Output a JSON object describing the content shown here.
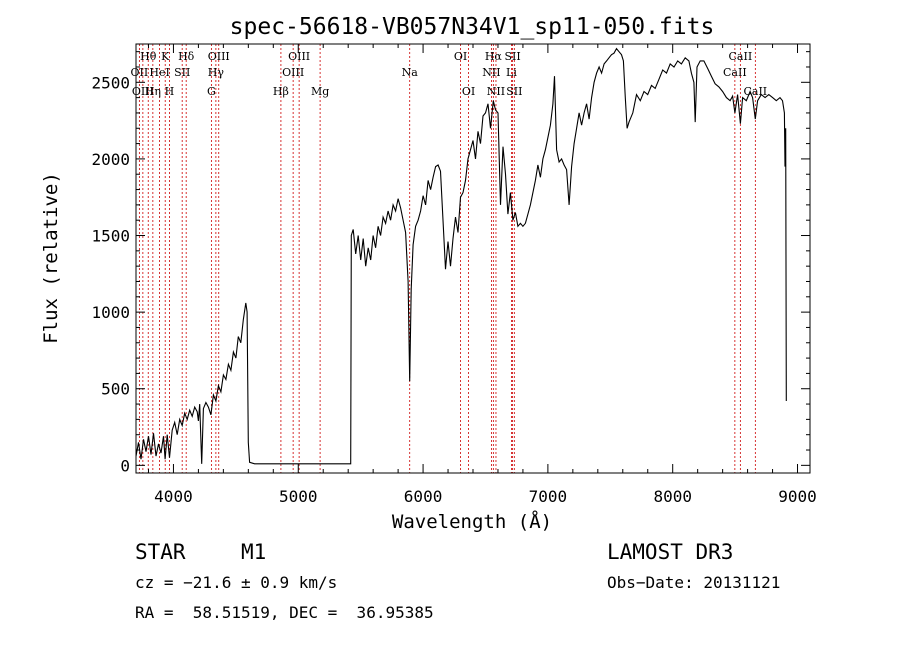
{
  "chart_data": {
    "type": "line",
    "title": "spec-56618-VB057N34V1_sp11-050.fits",
    "xlabel": "Wavelength (Å)",
    "ylabel": "Flux (relative)",
    "xlim": [
      3700,
      9100
    ],
    "ylim": [
      -50,
      2750
    ],
    "x_ticks": [
      4000,
      5000,
      6000,
      7000,
      8000,
      9000
    ],
    "y_ticks": [
      0,
      500,
      1000,
      1500,
      2000,
      2500
    ],
    "grid": false,
    "line_color": "#000000",
    "marker_color": "#cc0000",
    "series": [
      {
        "points": [
          [
            3700,
            60
          ],
          [
            3720,
            150
          ],
          [
            3740,
            40
          ],
          [
            3760,
            170
          ],
          [
            3780,
            90
          ],
          [
            3800,
            190
          ],
          [
            3820,
            70
          ],
          [
            3840,
            210
          ],
          [
            3860,
            60
          ],
          [
            3880,
            140
          ],
          [
            3900,
            80
          ],
          [
            3920,
            190
          ],
          [
            3933,
            40
          ],
          [
            3950,
            200
          ],
          [
            3968,
            50
          ],
          [
            3990,
            230
          ],
          [
            4010,
            280
          ],
          [
            4030,
            200
          ],
          [
            4050,
            300
          ],
          [
            4070,
            260
          ],
          [
            4090,
            340
          ],
          [
            4110,
            300
          ],
          [
            4130,
            360
          ],
          [
            4150,
            320
          ],
          [
            4170,
            380
          ],
          [
            4190,
            350
          ],
          [
            4200,
            290
          ],
          [
            4210,
            400
          ],
          [
            4226,
            10
          ],
          [
            4240,
            370
          ],
          [
            4260,
            410
          ],
          [
            4280,
            380
          ],
          [
            4300,
            330
          ],
          [
            4320,
            460
          ],
          [
            4340,
            420
          ],
          [
            4360,
            520
          ],
          [
            4380,
            480
          ],
          [
            4400,
            590
          ],
          [
            4420,
            560
          ],
          [
            4440,
            660
          ],
          [
            4460,
            620
          ],
          [
            4480,
            740
          ],
          [
            4500,
            700
          ],
          [
            4520,
            840
          ],
          [
            4540,
            800
          ],
          [
            4560,
            950
          ],
          [
            4580,
            1060
          ],
          [
            4590,
            1000
          ],
          [
            4600,
            150
          ],
          [
            4610,
            20
          ],
          [
            4650,
            10
          ],
          [
            5000,
            10
          ],
          [
            5420,
            10
          ],
          [
            5425,
            1500
          ],
          [
            5440,
            1540
          ],
          [
            5460,
            1380
          ],
          [
            5480,
            1500
          ],
          [
            5500,
            1340
          ],
          [
            5520,
            1480
          ],
          [
            5540,
            1300
          ],
          [
            5560,
            1420
          ],
          [
            5580,
            1340
          ],
          [
            5600,
            1500
          ],
          [
            5620,
            1420
          ],
          [
            5640,
            1560
          ],
          [
            5660,
            1500
          ],
          [
            5680,
            1620
          ],
          [
            5700,
            1580
          ],
          [
            5720,
            1660
          ],
          [
            5740,
            1600
          ],
          [
            5760,
            1700
          ],
          [
            5780,
            1660
          ],
          [
            5800,
            1740
          ],
          [
            5820,
            1680
          ],
          [
            5840,
            1600
          ],
          [
            5860,
            1520
          ],
          [
            5880,
            1200
          ],
          [
            5893,
            550
          ],
          [
            5905,
            1150
          ],
          [
            5920,
            1440
          ],
          [
            5940,
            1560
          ],
          [
            5960,
            1600
          ],
          [
            5980,
            1660
          ],
          [
            6000,
            1760
          ],
          [
            6020,
            1700
          ],
          [
            6040,
            1860
          ],
          [
            6060,
            1800
          ],
          [
            6080,
            1880
          ],
          [
            6100,
            1950
          ],
          [
            6120,
            1960
          ],
          [
            6140,
            1920
          ],
          [
            6160,
            1600
          ],
          [
            6180,
            1280
          ],
          [
            6200,
            1460
          ],
          [
            6220,
            1300
          ],
          [
            6240,
            1480
          ],
          [
            6260,
            1620
          ],
          [
            6280,
            1520
          ],
          [
            6300,
            1750
          ],
          [
            6320,
            1780
          ],
          [
            6340,
            1860
          ],
          [
            6360,
            2000
          ],
          [
            6380,
            2060
          ],
          [
            6400,
            2120
          ],
          [
            6420,
            2000
          ],
          [
            6440,
            2180
          ],
          [
            6460,
            2100
          ],
          [
            6480,
            2280
          ],
          [
            6500,
            2300
          ],
          [
            6520,
            2360
          ],
          [
            6540,
            2200
          ],
          [
            6563,
            2380
          ],
          [
            6580,
            2320
          ],
          [
            6600,
            2300
          ],
          [
            6620,
            1700
          ],
          [
            6640,
            2080
          ],
          [
            6660,
            1900
          ],
          [
            6680,
            1640
          ],
          [
            6700,
            1780
          ],
          [
            6720,
            1600
          ],
          [
            6740,
            1650
          ],
          [
            6760,
            1560
          ],
          [
            6780,
            1580
          ],
          [
            6800,
            1560
          ],
          [
            6820,
            1580
          ],
          [
            6840,
            1640
          ],
          [
            6860,
            1700
          ],
          [
            6880,
            1780
          ],
          [
            6900,
            1860
          ],
          [
            6920,
            1960
          ],
          [
            6940,
            1880
          ],
          [
            6960,
            2000
          ],
          [
            6980,
            2060
          ],
          [
            7000,
            2140
          ],
          [
            7020,
            2220
          ],
          [
            7040,
            2360
          ],
          [
            7053,
            2540
          ],
          [
            7070,
            2060
          ],
          [
            7090,
            1980
          ],
          [
            7110,
            2000
          ],
          [
            7130,
            1960
          ],
          [
            7150,
            1930
          ],
          [
            7170,
            1700
          ],
          [
            7190,
            1950
          ],
          [
            7210,
            2100
          ],
          [
            7230,
            2200
          ],
          [
            7250,
            2300
          ],
          [
            7270,
            2220
          ],
          [
            7290,
            2300
          ],
          [
            7310,
            2360
          ],
          [
            7330,
            2260
          ],
          [
            7350,
            2400
          ],
          [
            7370,
            2500
          ],
          [
            7390,
            2560
          ],
          [
            7410,
            2600
          ],
          [
            7430,
            2560
          ],
          [
            7450,
            2620
          ],
          [
            7470,
            2640
          ],
          [
            7490,
            2660
          ],
          [
            7510,
            2680
          ],
          [
            7530,
            2690
          ],
          [
            7550,
            2720
          ],
          [
            7570,
            2700
          ],
          [
            7590,
            2680
          ],
          [
            7605,
            2640
          ],
          [
            7620,
            2400
          ],
          [
            7635,
            2200
          ],
          [
            7650,
            2240
          ],
          [
            7680,
            2300
          ],
          [
            7710,
            2420
          ],
          [
            7740,
            2380
          ],
          [
            7770,
            2440
          ],
          [
            7800,
            2420
          ],
          [
            7830,
            2480
          ],
          [
            7860,
            2460
          ],
          [
            7890,
            2520
          ],
          [
            7920,
            2580
          ],
          [
            7950,
            2560
          ],
          [
            7980,
            2620
          ],
          [
            8010,
            2600
          ],
          [
            8040,
            2640
          ],
          [
            8070,
            2620
          ],
          [
            8100,
            2660
          ],
          [
            8130,
            2640
          ],
          [
            8150,
            2560
          ],
          [
            8170,
            2500
          ],
          [
            8180,
            2240
          ],
          [
            8195,
            2600
          ],
          [
            8220,
            2640
          ],
          [
            8250,
            2640
          ],
          [
            8280,
            2590
          ],
          [
            8310,
            2540
          ],
          [
            8340,
            2490
          ],
          [
            8370,
            2470
          ],
          [
            8400,
            2440
          ],
          [
            8430,
            2400
          ],
          [
            8460,
            2380
          ],
          [
            8480,
            2410
          ],
          [
            8498,
            2300
          ],
          [
            8520,
            2420
          ],
          [
            8542,
            2230
          ],
          [
            8560,
            2400
          ],
          [
            8590,
            2380
          ],
          [
            8620,
            2440
          ],
          [
            8640,
            2400
          ],
          [
            8662,
            2260
          ],
          [
            8680,
            2380
          ],
          [
            8710,
            2420
          ],
          [
            8740,
            2400
          ],
          [
            8770,
            2420
          ],
          [
            8800,
            2400
          ],
          [
            8830,
            2380
          ],
          [
            8860,
            2400
          ],
          [
            8880,
            2380
          ],
          [
            8895,
            2300
          ],
          [
            8900,
            1950
          ],
          [
            8905,
            2200
          ],
          [
            8910,
            420
          ]
        ]
      }
    ],
    "lines": [
      {
        "label": "Hθ",
        "wavelength": 3798,
        "row": 1
      },
      {
        "label": "OII",
        "wavelength": 3727,
        "row": 2
      },
      {
        "label": "OIII",
        "wavelength": 3755,
        "row": 3
      },
      {
        "label": "Hη",
        "wavelength": 3835,
        "row": 3
      },
      {
        "label": "K",
        "wavelength": 3934,
        "row": 1
      },
      {
        "label": "HeI",
        "wavelength": 3889,
        "row": 2
      },
      {
        "label": "H",
        "wavelength": 3968,
        "row": 3
      },
      {
        "label": "SII",
        "wavelength": 4070,
        "row": 2
      },
      {
        "label": "Hδ",
        "wavelength": 4102,
        "row": 1
      },
      {
        "label": "OIII",
        "wavelength": 4363,
        "row": 1
      },
      {
        "label": "Hγ",
        "wavelength": 4340,
        "row": 2
      },
      {
        "label": "G",
        "wavelength": 4304,
        "row": 3
      },
      {
        "label": "Hβ",
        "wavelength": 4861,
        "row": 3
      },
      {
        "label": "OIII",
        "wavelength": 5007,
        "row": 1
      },
      {
        "label": "OIII",
        "wavelength": 4959,
        "row": 2
      },
      {
        "label": "Mg",
        "wavelength": 5175,
        "row": 3
      },
      {
        "label": "Na",
        "wavelength": 5893,
        "row": 2
      },
      {
        "label": "OI",
        "wavelength": 6300,
        "row": 1
      },
      {
        "label": "OI",
        "wavelength": 6364,
        "row": 3
      },
      {
        "label": "Hα",
        "wavelength": 6563,
        "row": 1
      },
      {
        "label": "NII",
        "wavelength": 6548,
        "row": 2
      },
      {
        "label": "NII",
        "wavelength": 6584,
        "row": 3
      },
      {
        "label": "SII",
        "wavelength": 6717,
        "row": 1
      },
      {
        "label": "Li",
        "wavelength": 6708,
        "row": 2
      },
      {
        "label": "SII",
        "wavelength": 6731,
        "row": 3
      },
      {
        "label": "CaII",
        "wavelength": 8542,
        "row": 1
      },
      {
        "label": "CaII",
        "wavelength": 8498,
        "row": 2
      },
      {
        "label": "CaII",
        "wavelength": 8662,
        "row": 3
      }
    ]
  },
  "info": {
    "object_class": "STAR",
    "subclass": "M1",
    "survey": "LAMOST DR3",
    "cz": "cz = −21.6 ± 0.9 km/s",
    "obs_date": "Obs−Date: 20131121",
    "coords": "RA =  58.51519, DEC =  36.95385"
  }
}
